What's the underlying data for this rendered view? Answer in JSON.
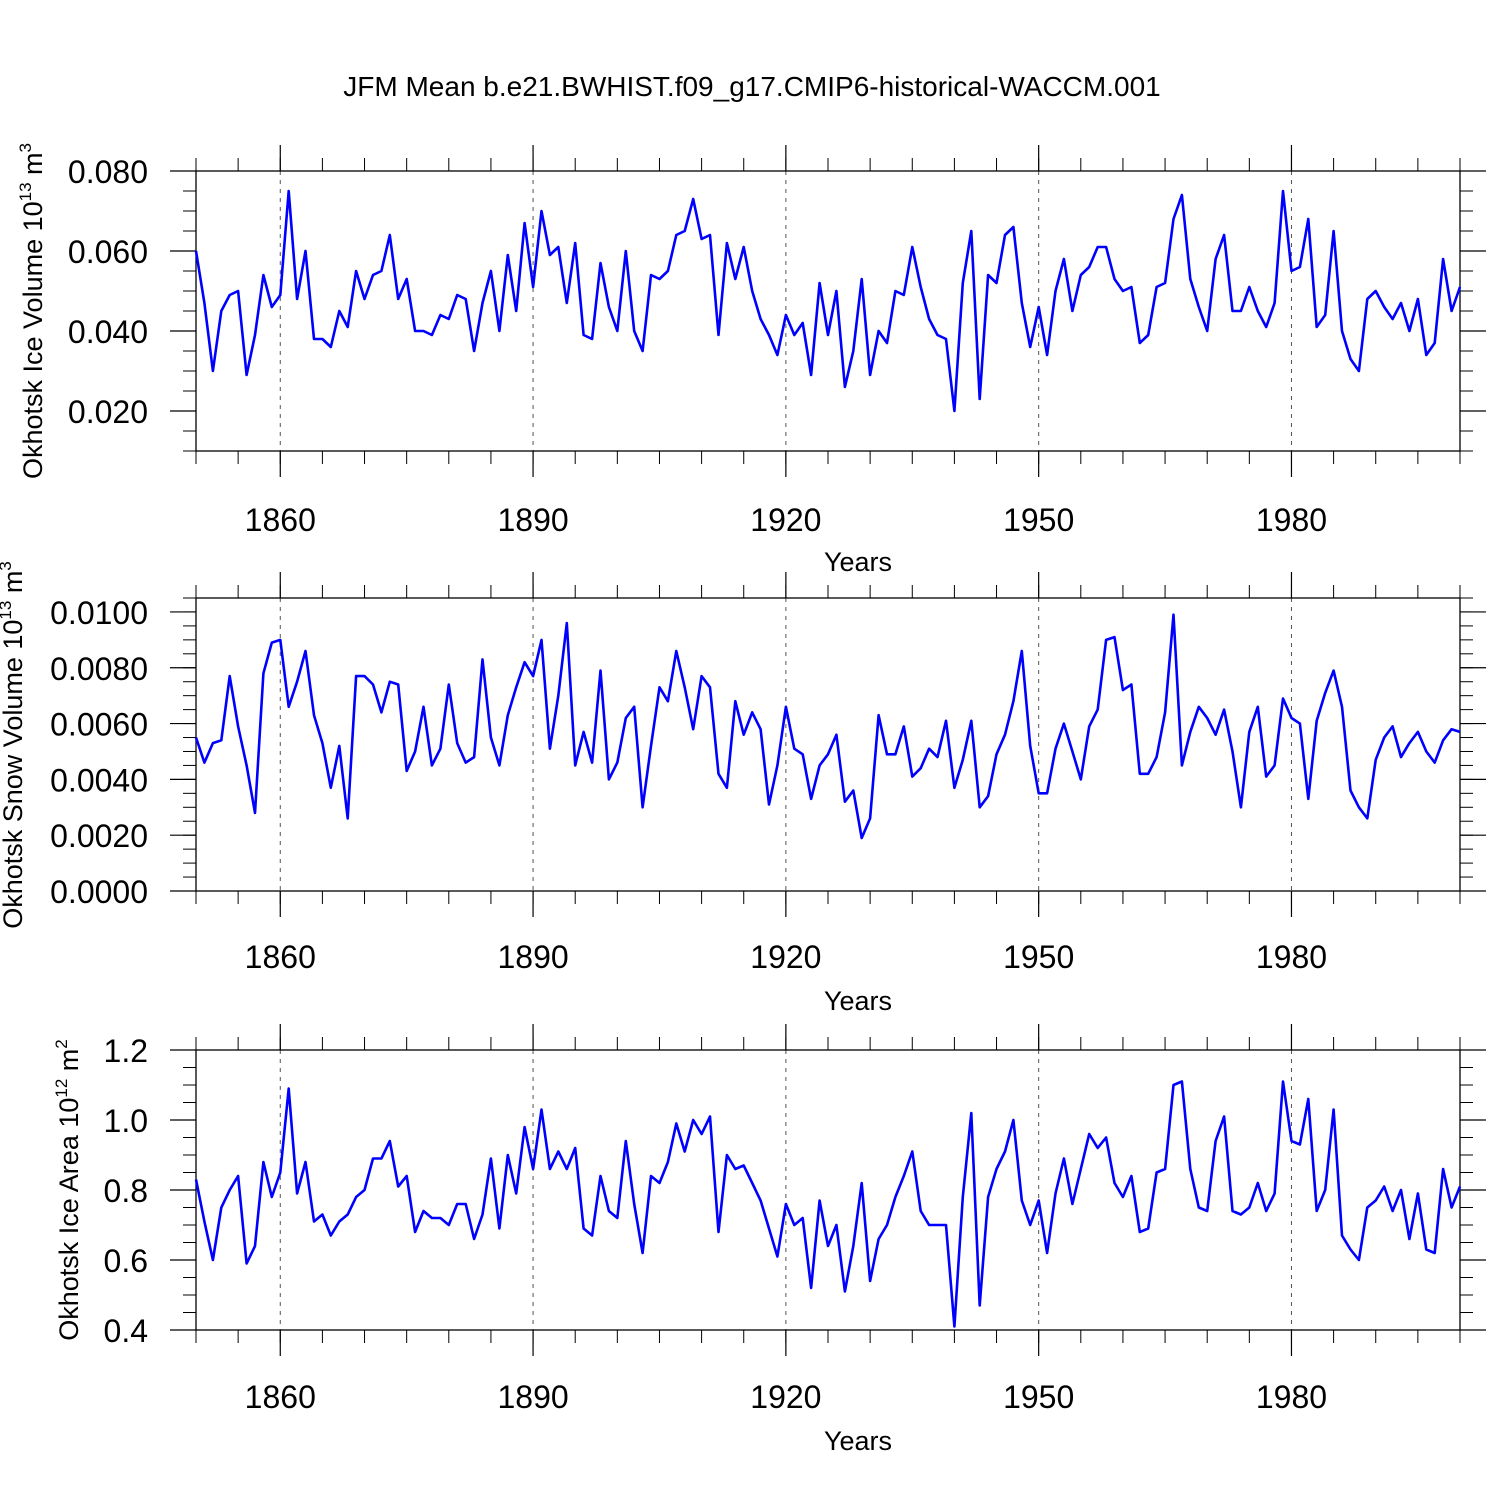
{
  "figure": {
    "title": "JFM Mean b.e21.BWHIST.f09_g17.CMIP6-historical-WACCM.001"
  },
  "chart_data": [
    {
      "type": "line",
      "title": "",
      "ylabel": {
        "base": "Okhotsk Ice Volume 10",
        "exp": "13",
        "unit": " m",
        "unit_exp": "3"
      },
      "xlabel": "Years",
      "xlim": [
        1850,
        2000
      ],
      "ylim": [
        0.01,
        0.08
      ],
      "yticks": [
        0.02,
        0.04,
        0.06,
        0.08
      ],
      "ytick_labels": [
        "0.020",
        "0.040",
        "0.060",
        "0.080"
      ],
      "yminor_step": 0.005,
      "xticks": [
        1860,
        1890,
        1920,
        1950,
        1980
      ],
      "xtick_labels": [
        "1860",
        "1890",
        "1920",
        "1950",
        "1980"
      ],
      "line_color": "#0000ff",
      "x_start": 1850,
      "values": [
        0.06,
        0.047,
        0.03,
        0.045,
        0.049,
        0.05,
        0.029,
        0.039,
        0.054,
        0.046,
        0.049,
        0.075,
        0.048,
        0.06,
        0.038,
        0.038,
        0.036,
        0.045,
        0.041,
        0.055,
        0.048,
        0.054,
        0.055,
        0.064,
        0.048,
        0.053,
        0.04,
        0.04,
        0.039,
        0.044,
        0.043,
        0.049,
        0.048,
        0.035,
        0.047,
        0.055,
        0.04,
        0.059,
        0.045,
        0.067,
        0.051,
        0.07,
        0.059,
        0.061,
        0.047,
        0.062,
        0.039,
        0.038,
        0.057,
        0.046,
        0.04,
        0.06,
        0.04,
        0.035,
        0.054,
        0.053,
        0.055,
        0.064,
        0.065,
        0.073,
        0.063,
        0.064,
        0.039,
        0.062,
        0.053,
        0.061,
        0.05,
        0.043,
        0.039,
        0.034,
        0.044,
        0.039,
        0.042,
        0.029,
        0.052,
        0.039,
        0.05,
        0.026,
        0.035,
        0.053,
        0.029,
        0.04,
        0.037,
        0.05,
        0.049,
        0.061,
        0.051,
        0.043,
        0.039,
        0.038,
        0.02,
        0.052,
        0.065,
        0.023,
        0.054,
        0.052,
        0.064,
        0.066,
        0.047,
        0.036,
        0.046,
        0.034,
        0.05,
        0.058,
        0.045,
        0.054,
        0.056,
        0.061,
        0.061,
        0.053,
        0.05,
        0.051,
        0.037,
        0.039,
        0.051,
        0.052,
        0.068,
        0.074,
        0.053,
        0.046,
        0.04,
        0.058,
        0.064,
        0.045,
        0.045,
        0.051,
        0.045,
        0.041,
        0.047,
        0.075,
        0.055,
        0.056,
        0.068,
        0.041,
        0.044,
        0.065,
        0.04,
        0.033,
        0.03,
        0.048,
        0.05,
        0.046,
        0.043,
        0.047,
        0.04,
        0.048,
        0.034,
        0.037,
        0.058,
        0.045,
        0.051
      ]
    },
    {
      "type": "line",
      "title": "",
      "ylabel": {
        "base": "Okhotsk Snow Volume 10",
        "exp": "13",
        "unit": " m",
        "unit_exp": "3"
      },
      "xlabel": "Years",
      "xlim": [
        1850,
        2000
      ],
      "ylim": [
        0.0,
        0.0105
      ],
      "yticks": [
        0.0,
        0.002,
        0.004,
        0.006,
        0.008,
        0.01
      ],
      "ytick_labels": [
        "0.0000",
        "0.0020",
        "0.0040",
        "0.0060",
        "0.0080",
        "0.0100"
      ],
      "yminor_step": 0.0005,
      "xticks": [
        1860,
        1890,
        1920,
        1950,
        1980
      ],
      "xtick_labels": [
        "1860",
        "1890",
        "1920",
        "1950",
        "1980"
      ],
      "line_color": "#0000ff",
      "x_start": 1850,
      "values": [
        0.0055,
        0.0046,
        0.0053,
        0.0054,
        0.0077,
        0.0059,
        0.0045,
        0.0028,
        0.0078,
        0.0089,
        0.009,
        0.0066,
        0.0075,
        0.0086,
        0.0063,
        0.0053,
        0.0037,
        0.0052,
        0.0026,
        0.0077,
        0.0077,
        0.0074,
        0.0064,
        0.0075,
        0.0074,
        0.0043,
        0.005,
        0.0066,
        0.0045,
        0.0051,
        0.0074,
        0.0053,
        0.0046,
        0.0048,
        0.0083,
        0.0055,
        0.0045,
        0.0063,
        0.0073,
        0.0082,
        0.0077,
        0.009,
        0.0051,
        0.007,
        0.0096,
        0.0045,
        0.0057,
        0.0046,
        0.0079,
        0.004,
        0.0046,
        0.0062,
        0.0066,
        0.003,
        0.0052,
        0.0073,
        0.0068,
        0.0086,
        0.0073,
        0.0058,
        0.0077,
        0.0073,
        0.0042,
        0.0037,
        0.0068,
        0.0056,
        0.0064,
        0.0058,
        0.0031,
        0.0045,
        0.0066,
        0.0051,
        0.0049,
        0.0033,
        0.0045,
        0.0049,
        0.0056,
        0.0032,
        0.0036,
        0.0019,
        0.0026,
        0.0063,
        0.0049,
        0.0049,
        0.0059,
        0.0041,
        0.0044,
        0.0051,
        0.0048,
        0.0061,
        0.0037,
        0.0047,
        0.0061,
        0.003,
        0.0034,
        0.0049,
        0.0056,
        0.0068,
        0.0086,
        0.0052,
        0.0035,
        0.0035,
        0.0051,
        0.006,
        0.005,
        0.004,
        0.0059,
        0.0065,
        0.009,
        0.0091,
        0.0072,
        0.0074,
        0.0042,
        0.0042,
        0.0048,
        0.0064,
        0.0099,
        0.0045,
        0.0057,
        0.0066,
        0.0062,
        0.0056,
        0.0065,
        0.005,
        0.003,
        0.0057,
        0.0066,
        0.0041,
        0.0045,
        0.0069,
        0.0062,
        0.006,
        0.0033,
        0.0061,
        0.0071,
        0.0079,
        0.0066,
        0.0036,
        0.003,
        0.0026,
        0.0047,
        0.0055,
        0.0059,
        0.0048,
        0.0053,
        0.0057,
        0.005,
        0.0046,
        0.0054,
        0.0058,
        0.0057
      ]
    },
    {
      "type": "line",
      "title": "",
      "ylabel": {
        "base": "Okhotsk Ice Area 10",
        "exp": "12",
        "unit": " m",
        "unit_exp": "2"
      },
      "xlabel": "Years",
      "xlim": [
        1850,
        2000
      ],
      "ylim": [
        0.4,
        1.2
      ],
      "yticks": [
        0.4,
        0.6,
        0.8,
        1.0,
        1.2
      ],
      "ytick_labels": [
        "0.4",
        "0.6",
        "0.8",
        "1.0",
        "1.2"
      ],
      "yminor_step": 0.05,
      "xticks": [
        1860,
        1890,
        1920,
        1950,
        1980
      ],
      "xtick_labels": [
        "1860",
        "1890",
        "1920",
        "1950",
        "1980"
      ],
      "line_color": "#0000ff",
      "x_start": 1850,
      "values": [
        0.83,
        0.71,
        0.6,
        0.75,
        0.8,
        0.84,
        0.59,
        0.64,
        0.88,
        0.78,
        0.85,
        1.09,
        0.79,
        0.88,
        0.71,
        0.73,
        0.67,
        0.71,
        0.73,
        0.78,
        0.8,
        0.89,
        0.89,
        0.94,
        0.81,
        0.84,
        0.68,
        0.74,
        0.72,
        0.72,
        0.7,
        0.76,
        0.76,
        0.66,
        0.73,
        0.89,
        0.69,
        0.9,
        0.79,
        0.98,
        0.86,
        1.03,
        0.86,
        0.91,
        0.86,
        0.92,
        0.69,
        0.67,
        0.84,
        0.74,
        0.72,
        0.94,
        0.76,
        0.62,
        0.84,
        0.82,
        0.88,
        0.99,
        0.91,
        1.0,
        0.96,
        1.01,
        0.68,
        0.9,
        0.86,
        0.87,
        0.82,
        0.77,
        0.69,
        0.61,
        0.76,
        0.7,
        0.72,
        0.52,
        0.77,
        0.64,
        0.7,
        0.51,
        0.64,
        0.82,
        0.54,
        0.66,
        0.7,
        0.78,
        0.84,
        0.91,
        0.74,
        0.7,
        0.7,
        0.7,
        0.41,
        0.78,
        1.02,
        0.47,
        0.78,
        0.86,
        0.91,
        1.0,
        0.77,
        0.7,
        0.77,
        0.62,
        0.79,
        0.89,
        0.76,
        0.86,
        0.96,
        0.92,
        0.95,
        0.82,
        0.78,
        0.84,
        0.68,
        0.69,
        0.85,
        0.86,
        1.1,
        1.11,
        0.86,
        0.75,
        0.74,
        0.94,
        1.01,
        0.74,
        0.73,
        0.75,
        0.82,
        0.74,
        0.79,
        1.11,
        0.94,
        0.93,
        1.06,
        0.74,
        0.8,
        1.03,
        0.67,
        0.63,
        0.6,
        0.75,
        0.77,
        0.81,
        0.74,
        0.8,
        0.66,
        0.79,
        0.63,
        0.62,
        0.86,
        0.75,
        0.81
      ]
    }
  ]
}
